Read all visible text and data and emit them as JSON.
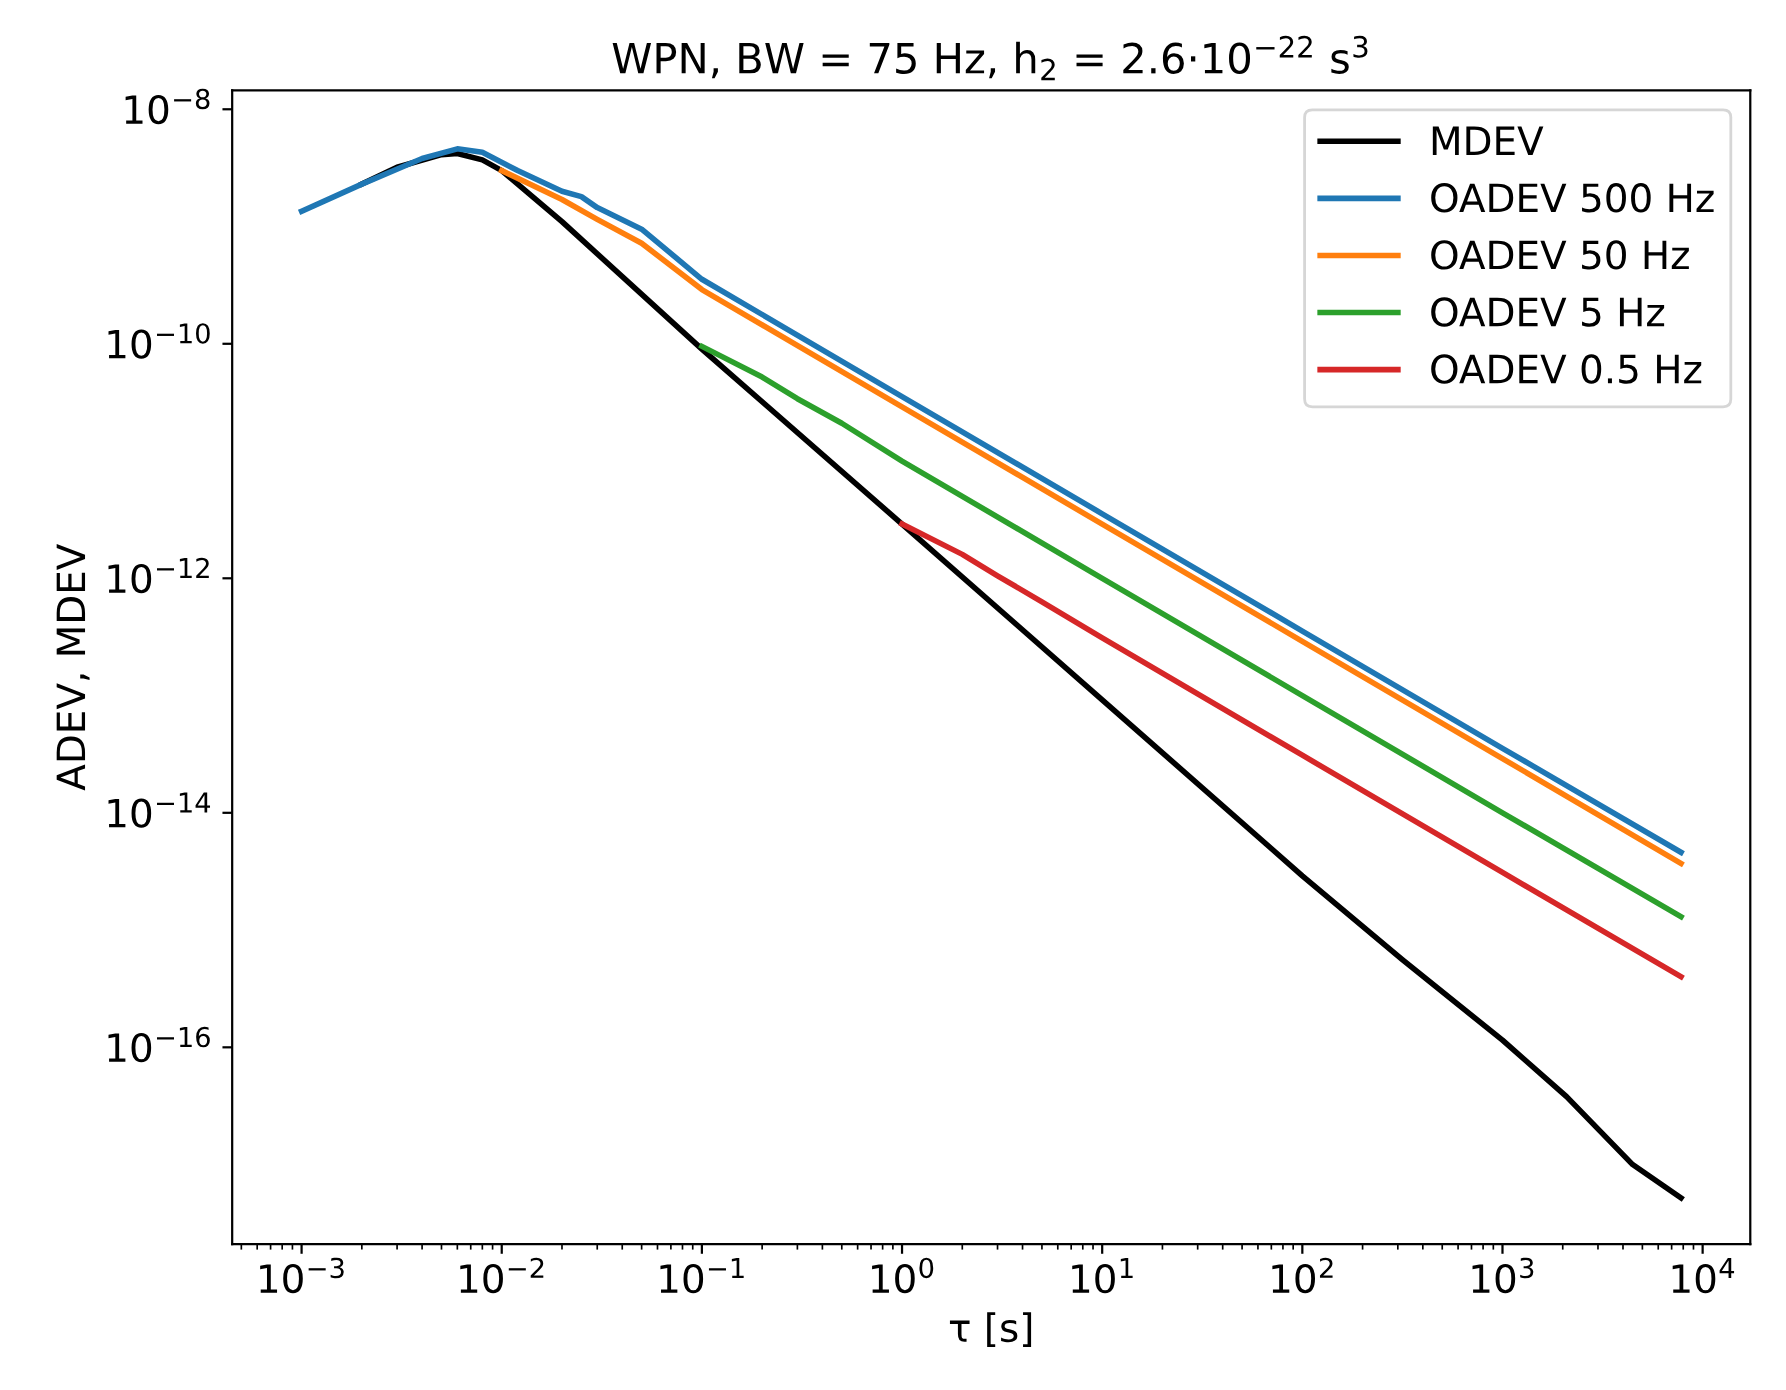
{
  "chart_data": {
    "type": "line",
    "title": "WPN, BW = 75 Hz, h$_{2}$ = 2.6·10$^{−22}$ s$^{3}$",
    "xlabel": "τ [s]",
    "ylabel": "ADEV, MDEV",
    "log": "xy",
    "legend": "top right",
    "grid": false,
    "xlim": [
      0.00045,
      17300.0
    ],
    "ylim": [
      2.1e-18,
      1.45e-08
    ],
    "xticks": [
      {
        "value": 0.001,
        "label": "10$^{−3}$"
      },
      {
        "value": 0.01,
        "label": "10$^{−2}$"
      },
      {
        "value": 0.1,
        "label": "10$^{−1}$"
      },
      {
        "value": 1,
        "label": "10$^{0}$"
      },
      {
        "value": 10,
        "label": "10$^{1}$"
      },
      {
        "value": 100,
        "label": "10$^{2}$"
      },
      {
        "value": 1000,
        "label": "10$^{3}$"
      },
      {
        "value": 10000,
        "label": "10$^{4}$"
      }
    ],
    "yticks": [
      {
        "value": 1e-08,
        "label": "10$^{−8}$"
      },
      {
        "value": 1e-10,
        "label": "10$^{−10}$"
      },
      {
        "value": 1e-12,
        "label": "10$^{−12}$"
      },
      {
        "value": 1e-14,
        "label": "10$^{−14}$"
      },
      {
        "value": 1e-16,
        "label": "10$^{−16}$"
      }
    ],
    "series": [
      {
        "name": "MDEV",
        "color": "#000000",
        "x": [
          0.002,
          0.003,
          0.005,
          0.006,
          0.008,
          0.01,
          0.02,
          0.1,
          1,
          10,
          100,
          316,
          1000,
          2090,
          4470,
          7800
        ],
        "values": [
          2.3e-09,
          3.2e-09,
          4.1e-09,
          4.2e-09,
          3.7e-09,
          3e-09,
          1.1e-09,
          9e-11,
          2.9e-12,
          9.2e-14,
          2.9e-15,
          5.6e-16,
          1.15e-16,
          3.8e-17,
          1e-17,
          5.2e-18
        ]
      },
      {
        "name": "OADEV 500 Hz",
        "color": "#1f77b4",
        "x": [
          0.001,
          0.002,
          0.004,
          0.006,
          0.008,
          0.012,
          0.02,
          0.025,
          0.03,
          0.05,
          0.1,
          1,
          10,
          100,
          1000,
          7800
        ],
        "values": [
          1.35e-09,
          2.3e-09,
          3.8e-09,
          4.6e-09,
          4.3e-09,
          3e-09,
          2e-09,
          1.8e-09,
          1.45e-09,
          9.5e-10,
          3.55e-10,
          3.55e-11,
          3.55e-12,
          3.55e-13,
          3.55e-14,
          4.6e-15
        ]
      },
      {
        "name": "OADEV 50 Hz",
        "color": "#ff7f0e",
        "x": [
          0.01,
          0.02,
          0.03,
          0.05,
          0.1,
          1,
          10,
          100,
          1000,
          7800
        ],
        "values": [
          3e-09,
          1.7e-09,
          1.15e-09,
          7.2e-10,
          2.9e-10,
          2.9e-11,
          2.9e-12,
          2.9e-13,
          2.9e-14,
          3.7e-15
        ]
      },
      {
        "name": "OADEV 5 Hz",
        "color": "#2ca02c",
        "x": [
          0.1,
          0.2,
          0.3,
          0.5,
          1,
          10,
          100,
          1000,
          7800
        ],
        "values": [
          9.5e-11,
          5.2e-11,
          3.4e-11,
          2.1e-11,
          1e-11,
          1e-12,
          1e-13,
          1e-14,
          1.3e-15
        ]
      },
      {
        "name": "OADEV 0.5 Hz",
        "color": "#d62728",
        "x": [
          1,
          2,
          3,
          5,
          10,
          100,
          1000,
          7800
        ],
        "values": [
          2.9e-12,
          1.6e-12,
          1.05e-12,
          6.3e-13,
          3.1e-13,
          3.1e-14,
          3.1e-15,
          4e-16
        ]
      }
    ]
  }
}
